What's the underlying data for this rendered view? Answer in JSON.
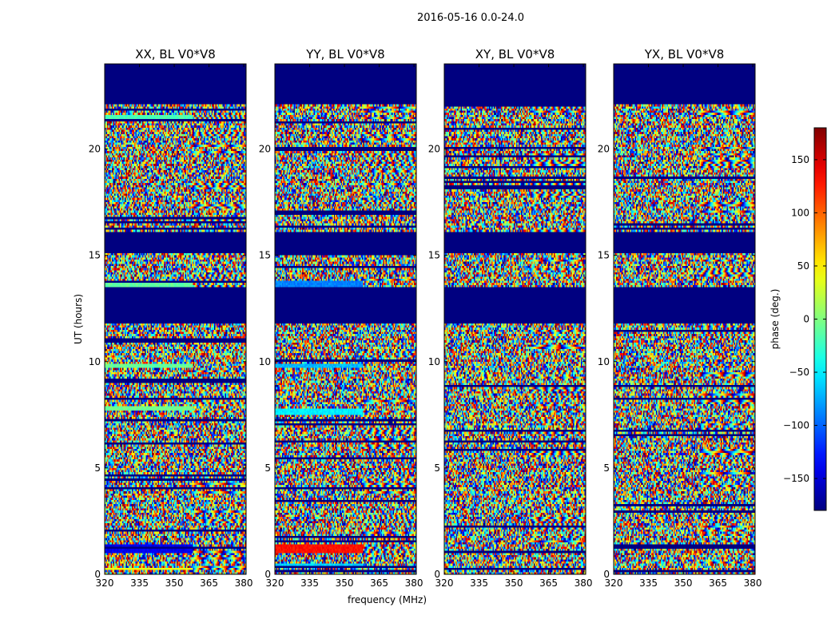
{
  "figure": {
    "suptitle": "2016-05-16 0.0-24.0",
    "colorbar_label": "phase (deg.)",
    "colorbar_ticks": [
      -150,
      -100,
      -50,
      0,
      50,
      100,
      150
    ],
    "colorbar_tick_labels": [
      "−150",
      "−100",
      "−50",
      "0",
      "50",
      "100",
      "150"
    ],
    "colormap": "jet",
    "colormap_stops": [
      "#00007f",
      "#0000ff",
      "#00ffff",
      "#7fff7f",
      "#ffff00",
      "#ff0000",
      "#7f0000"
    ]
  },
  "chart_data": [
    {
      "type": "heatmap",
      "title": "XX, BL V0*V8",
      "xlabel": "",
      "ylabel": "UT (hours)",
      "xlim": [
        320,
        381
      ],
      "ylim": [
        0,
        24
      ],
      "xticks": [
        320,
        335,
        350,
        365,
        380
      ],
      "yticks": [
        0,
        5,
        10,
        15,
        20
      ],
      "zlim": [
        -180,
        180
      ],
      "zlabel": "phase (deg.)",
      "masked_value": -180,
      "fully_masked_hours": [
        [
          13.5,
          11.8
        ],
        [
          16.1,
          15.1
        ],
        [
          24.0,
          22.1
        ]
      ],
      "flat_bands": [
        {
          "hours": [
            13.5,
            13.8
          ],
          "phase": -10
        },
        {
          "hours": [
            7.7,
            7.9
          ],
          "phase": -5
        },
        {
          "hours": [
            9.7,
            9.9
          ],
          "phase": -10
        },
        {
          "hours": [
            21.3,
            21.6
          ],
          "phase": -20
        },
        {
          "hours": [
            0.15,
            0.3
          ],
          "phase": 40
        },
        {
          "hours": [
            1.0,
            1.4
          ],
          "phase": -140
        }
      ]
    },
    {
      "type": "heatmap",
      "title": "YY, BL V0*V8",
      "xlabel": "frequency (MHz)",
      "ylabel": "",
      "xlim": [
        320,
        381
      ],
      "ylim": [
        0,
        24
      ],
      "xticks": [
        320,
        335,
        350,
        365,
        380
      ],
      "yticks": [
        0,
        5,
        10,
        15,
        20
      ],
      "zlim": [
        -180,
        180
      ],
      "zlabel": "phase (deg.)",
      "masked_value": -180,
      "fully_masked_hours": [
        [
          13.5,
          11.8
        ],
        [
          16.1,
          15.1
        ],
        [
          24.0,
          22.1
        ]
      ],
      "flat_bands": [
        {
          "hours": [
            13.5,
            13.8
          ],
          "phase": -90
        },
        {
          "hours": [
            7.5,
            7.8
          ],
          "phase": -50
        },
        {
          "hours": [
            9.7,
            9.9
          ],
          "phase": -70
        },
        {
          "hours": [
            1.0,
            1.4
          ],
          "phase": 130
        },
        {
          "hours": [
            0.3,
            0.5
          ],
          "phase": -60
        }
      ]
    },
    {
      "type": "heatmap",
      "title": "XY, BL V0*V8",
      "xlabel": "",
      "ylabel": "",
      "xlim": [
        320,
        381
      ],
      "ylim": [
        0,
        24
      ],
      "xticks": [
        320,
        335,
        350,
        365,
        380
      ],
      "yticks": [
        0,
        5,
        10,
        15,
        20
      ],
      "zlim": [
        -180,
        180
      ],
      "zlabel": "phase (deg.)",
      "masked_value": -180,
      "fully_masked_hours": [
        [
          13.5,
          11.8
        ],
        [
          16.1,
          15.1
        ],
        [
          24.0,
          22.1
        ]
      ],
      "flat_bands": []
    },
    {
      "type": "heatmap",
      "title": "YX, BL V0*V8",
      "xlabel": "",
      "ylabel": "",
      "xlim": [
        320,
        381
      ],
      "ylim": [
        0,
        24
      ],
      "xticks": [
        320,
        335,
        350,
        365,
        380
      ],
      "yticks": [
        0,
        5,
        10,
        15,
        20
      ],
      "zlim": [
        -180,
        180
      ],
      "zlabel": "phase (deg.)",
      "masked_value": -180,
      "fully_masked_hours": [
        [
          13.5,
          11.8
        ],
        [
          16.1,
          15.1
        ],
        [
          24.0,
          22.1
        ]
      ],
      "flat_bands": []
    }
  ]
}
